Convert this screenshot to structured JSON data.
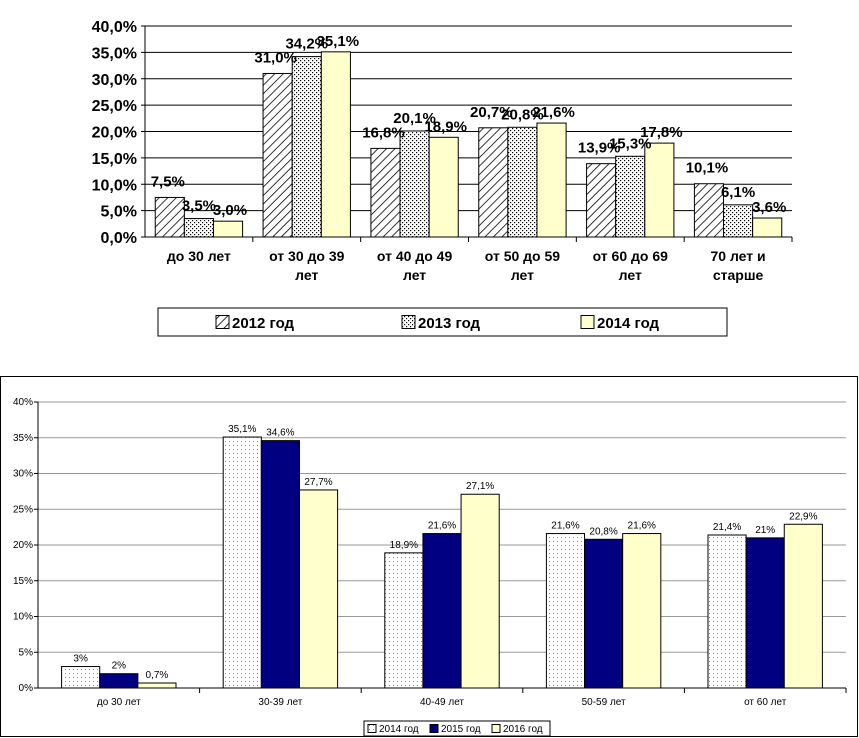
{
  "chart_data": [
    {
      "type": "bar",
      "title": "",
      "xlabel": "",
      "ylabel": "",
      "ylim": [
        0,
        40
      ],
      "yticks": [
        "0,0%",
        "5,0%",
        "10,0%",
        "15,0%",
        "20,0%",
        "25,0%",
        "30,0%",
        "35,0%",
        "40,0%"
      ],
      "grid": true,
      "legend": "bottom",
      "categories": [
        [
          "до 30 лет"
        ],
        [
          "от 30 до 39",
          "лет"
        ],
        [
          "от 40 до 49",
          "лет"
        ],
        [
          "от 50 до 59",
          "лет"
        ],
        [
          "от 60 до 69",
          "лет"
        ],
        [
          "70 лет и",
          "старше"
        ]
      ],
      "series": [
        {
          "name": "2012 год",
          "pattern": "diagonal-hatch",
          "color": "#000000",
          "values": [
            7.5,
            31.0,
            16.8,
            20.7,
            13.9,
            10.1
          ],
          "labels": [
            "7,5%",
            "31,0%",
            "16,8%",
            "20,7%",
            "13,9%",
            "10,1%"
          ]
        },
        {
          "name": "2013 год",
          "pattern": "dots",
          "color": "#000000",
          "values": [
            3.5,
            34.2,
            20.1,
            20.8,
            15.3,
            6.1
          ],
          "labels": [
            "3,5%",
            "34,2%",
            "20,1%",
            "20,8%",
            "15,3%",
            "6,1%"
          ]
        },
        {
          "name": "2014 год",
          "pattern": "solid",
          "color": "#ffffcc",
          "values": [
            3.0,
            35.1,
            18.9,
            21.6,
            17.8,
            3.6
          ],
          "labels": [
            "3,0%",
            "35,1%",
            "18,9%",
            "21,6%",
            "17,8%",
            "3,6%"
          ]
        }
      ]
    },
    {
      "type": "bar",
      "title": "",
      "xlabel": "",
      "ylabel": "",
      "ylim": [
        0,
        40
      ],
      "yticks": [
        "0%",
        "5%",
        "10%",
        "15%",
        "20%",
        "25%",
        "30%",
        "35%",
        "40%"
      ],
      "grid": true,
      "legend": "bottom",
      "categories": [
        [
          "до 30 лет"
        ],
        [
          "30-39 лет"
        ],
        [
          "40-49 лет"
        ],
        [
          "50-59 лет"
        ],
        [
          "от 60 лет"
        ]
      ],
      "series": [
        {
          "name": "2014 год",
          "pattern": "dots",
          "color": "#ffffff",
          "values": [
            3,
            35.1,
            18.9,
            21.6,
            21.4
          ],
          "labels": [
            "3%",
            "35,1%",
            "18,9%",
            "21,6%",
            "21,4%"
          ]
        },
        {
          "name": "2015 год",
          "pattern": "solid",
          "color": "#000080",
          "values": [
            2,
            34.6,
            21.6,
            20.8,
            21
          ],
          "labels": [
            "2%",
            "34,6%",
            "21,6%",
            "20,8%",
            "21%"
          ]
        },
        {
          "name": "2016 год",
          "pattern": "solid",
          "color": "#ffffcc",
          "values": [
            0.7,
            27.7,
            27.1,
            21.6,
            22.9
          ],
          "labels": [
            "0,7%",
            "27,7%",
            "27,1%",
            "21,6%",
            "22,9%"
          ]
        }
      ]
    }
  ]
}
